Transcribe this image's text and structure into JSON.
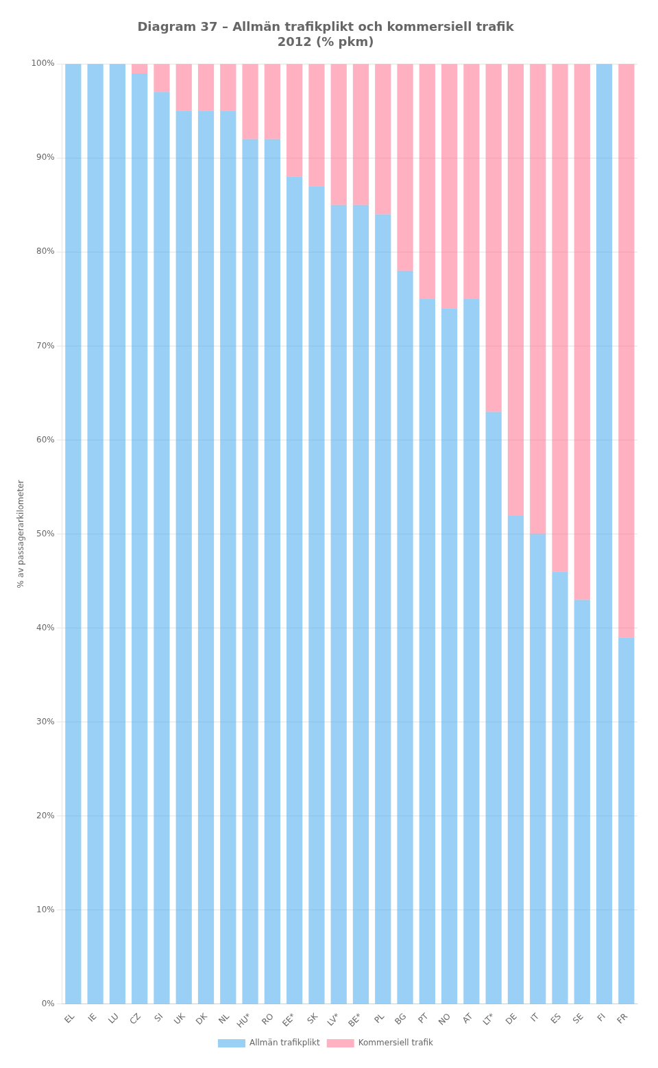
{
  "chart_data": {
    "type": "bar",
    "stacked": true,
    "title": "Diagram 37 – Allmän trafikplikt och kommersiell trafik\n2012 (% pkm)",
    "ylabel": "% av passagerarkilometer",
    "categories": [
      "EL",
      "IE",
      "LU",
      "CZ",
      "SI",
      "UK",
      "DK",
      "NL",
      "HU*",
      "RO",
      "EE*",
      "SK",
      "LV*",
      "BE*",
      "PL",
      "BG",
      "PT",
      "NO",
      "AT",
      "LT*",
      "DE",
      "IT",
      "ES",
      "SE",
      "FI",
      "FR"
    ],
    "series": [
      {
        "name": "Allmän trafikplikt",
        "values": [
          1,
          1,
          1,
          0.99,
          0.97,
          0.95,
          0.95,
          0.95,
          0.92,
          0.92,
          0.88,
          0.87,
          0.85,
          0.85,
          0.84,
          0.78,
          0.75,
          0.74,
          0.75,
          0.63,
          0.52,
          0.5,
          0.46,
          0.43,
          1,
          0.39
        ]
      },
      {
        "name": "Kommersiell trafik",
        "values": [
          0,
          0,
          0,
          0.01,
          0.03,
          0.05,
          0.05,
          0.05,
          0.08,
          0.08,
          0.12,
          0.13,
          0.15,
          0.15,
          0.16,
          0.22,
          0.25,
          0.26,
          0.25,
          0.37,
          0.48,
          0.5,
          0.54,
          0.57,
          0,
          0.61
        ]
      }
    ],
    "ylim": [
      0,
      1.0
    ],
    "yticks": [
      {
        "value": 0,
        "label": "0%"
      },
      {
        "value": 0.1,
        "label": "10%"
      },
      {
        "value": 0.2,
        "label": "20%"
      },
      {
        "value": 0.3,
        "label": "30%"
      },
      {
        "value": 0.4,
        "label": "40%"
      },
      {
        "value": 0.5,
        "label": "50%"
      },
      {
        "value": 0.6,
        "label": "60%"
      },
      {
        "value": 0.7,
        "label": "70%"
      },
      {
        "value": 0.8,
        "label": "80%"
      },
      {
        "value": 0.9,
        "label": "90%"
      },
      {
        "value": 1.0,
        "label": "100%"
      }
    ],
    "grid": true,
    "legend": "bottom"
  }
}
